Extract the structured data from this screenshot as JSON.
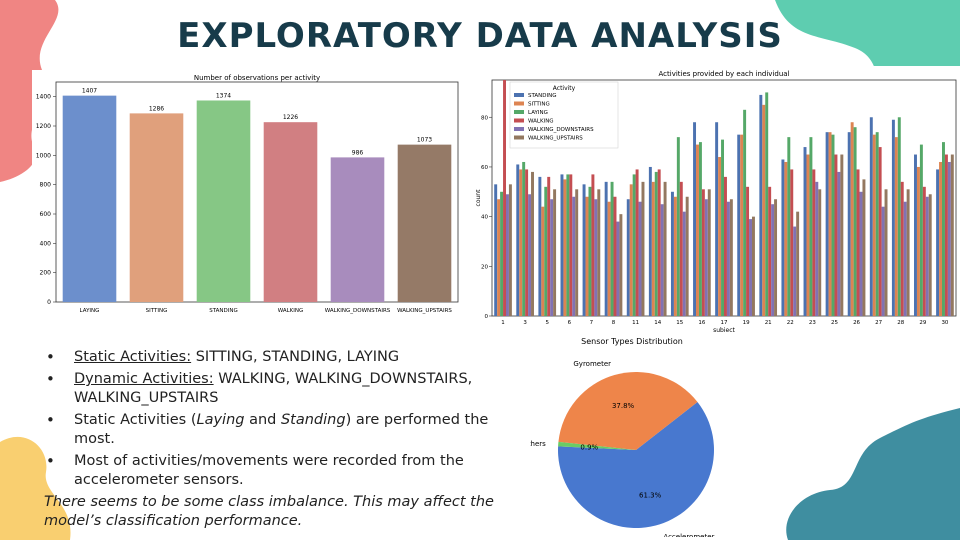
{
  "title": "EXPLORATORY DATA ANALYSIS",
  "colors": {
    "title": "#173b4a",
    "coral": "#f08583",
    "mint": "#5ecdb0",
    "teal": "#3f8ea0",
    "yellow": "#f9cf70"
  },
  "bullets": [
    {
      "prefix": "Static Activities:",
      "rest": " SITTING, STANDING, LAYING"
    },
    {
      "prefix": "Dynamic Activities:",
      "rest": " WALKING, WALKING_DOWNSTAIRS, WALKING_UPSTAIRS"
    },
    {
      "text_a": "Static Activities (",
      "em1": "Laying",
      "text_b": " and ",
      "em2": "Standing",
      "text_c": ") are performed the most."
    },
    {
      "text": "Most of activities/movements were recorded from the accelerometer sensors."
    }
  ],
  "note": "There seems to be some class imbalance. This may affect the model’s classification performance.",
  "chart_data": [
    {
      "type": "bar",
      "title": "Number of observations per activity",
      "categories": [
        "LAYING",
        "SITTING",
        "STANDING",
        "WALKING",
        "WALKING_DOWNSTAIRS",
        "WALKING_UPSTAIRS"
      ],
      "values": [
        1407,
        1286,
        1374,
        1226,
        986,
        1073
      ],
      "ylim": [
        0,
        1500
      ],
      "yticks": [
        0,
        200,
        400,
        600,
        800,
        1000,
        1200,
        1400
      ],
      "colors": [
        "#6c8fcc",
        "#e0a07c",
        "#86c785",
        "#d17f82",
        "#a88cbd",
        "#957a67"
      ]
    },
    {
      "type": "bar",
      "title": "Activities provided by each individual",
      "xlabel": "subject",
      "ylabel": "count",
      "legend_title": "Activity",
      "legend_position": "top-left",
      "ylim": [
        0,
        95
      ],
      "yticks": [
        0,
        20,
        40,
        60,
        80
      ],
      "categories": [
        "1",
        "3",
        "5",
        "6",
        "7",
        "8",
        "11",
        "14",
        "15",
        "16",
        "17",
        "19",
        "21",
        "22",
        "23",
        "25",
        "26",
        "27",
        "28",
        "29",
        "30"
      ],
      "series": [
        {
          "name": "STANDING",
          "color": "#4c72b0",
          "values": [
            53,
            61,
            56,
            57,
            53,
            54,
            47,
            60,
            50,
            78,
            78,
            73,
            89,
            63,
            68,
            74,
            74,
            80,
            79,
            65,
            59
          ]
        },
        {
          "name": "SITTING",
          "color": "#dd8452",
          "values": [
            47,
            59,
            44,
            55,
            48,
            46,
            53,
            54,
            48,
            69,
            64,
            73,
            85,
            62,
            65,
            74,
            78,
            73,
            72,
            60,
            62
          ]
        },
        {
          "name": "LAYING",
          "color": "#55a868",
          "values": [
            50,
            62,
            52,
            57,
            52,
            54,
            57,
            58,
            72,
            70,
            71,
            83,
            90,
            72,
            72,
            73,
            76,
            74,
            80,
            69,
            70
          ]
        },
        {
          "name": "WALKING",
          "color": "#c44e52",
          "values": [
            95,
            59,
            56,
            57,
            57,
            48,
            59,
            59,
            54,
            51,
            56,
            52,
            52,
            59,
            59,
            65,
            59,
            68,
            54,
            52,
            65
          ]
        },
        {
          "name": "WALKING_DOWNSTAIRS",
          "color": "#8172b3",
          "values": [
            49,
            49,
            47,
            48,
            47,
            38,
            46,
            45,
            42,
            47,
            46,
            39,
            45,
            36,
            54,
            58,
            50,
            44,
            46,
            48,
            62
          ]
        },
        {
          "name": "WALKING_UPSTAIRS",
          "color": "#937860",
          "values": [
            53,
            58,
            51,
            51,
            51,
            41,
            54,
            54,
            48,
            51,
            47,
            40,
            47,
            42,
            51,
            65,
            55,
            51,
            51,
            49,
            65
          ]
        }
      ]
    },
    {
      "type": "pie",
      "title": "Sensor Types Distribution",
      "labels": [
        "Accelerometer",
        "Gyrometer",
        "Others"
      ],
      "values": [
        61.3,
        37.8,
        0.9
      ],
      "display": [
        "61.3%",
        "37.8%",
        "0.9%"
      ],
      "colors": [
        "#4878cf",
        "#ee854a",
        "#6acc65"
      ]
    }
  ]
}
